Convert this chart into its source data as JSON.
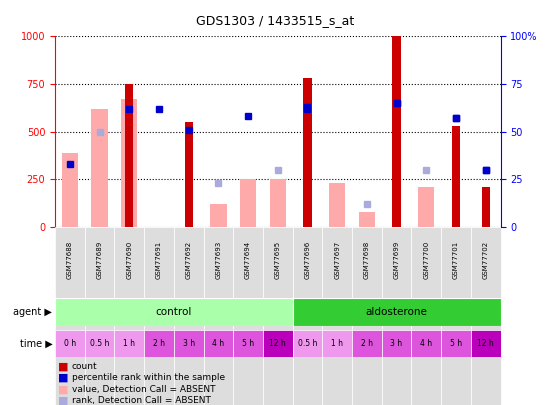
{
  "title": "GDS1303 / 1433515_s_at",
  "samples": [
    "GSM77688",
    "GSM77689",
    "GSM77690",
    "GSM77691",
    "GSM77692",
    "GSM77693",
    "GSM77694",
    "GSM77695",
    "GSM77696",
    "GSM77697",
    "GSM77698",
    "GSM77699",
    "GSM77700",
    "GSM77701",
    "GSM77702"
  ],
  "count_values": [
    null,
    null,
    750,
    null,
    550,
    null,
    null,
    null,
    780,
    null,
    null,
    1000,
    null,
    530,
    210
  ],
  "count_absent_values": [
    390,
    620,
    670,
    null,
    null,
    120,
    250,
    250,
    null,
    230,
    80,
    null,
    210,
    null,
    null
  ],
  "rank_present_values": [
    null,
    null,
    62,
    null,
    51,
    null,
    null,
    null,
    63,
    null,
    null,
    65,
    null,
    57,
    30
  ],
  "rank_absent_values": [
    null,
    50,
    null,
    null,
    null,
    23,
    null,
    30,
    null,
    null,
    12,
    null,
    30,
    null,
    null
  ],
  "blue_sq_present": [
    33,
    null,
    null,
    62,
    null,
    null,
    58,
    null,
    62,
    null,
    null,
    65,
    null,
    57,
    30
  ],
  "agent_groups": [
    {
      "label": "control",
      "start": 0,
      "end": 7,
      "color": "#AAFFAA"
    },
    {
      "label": "aldosterone",
      "start": 8,
      "end": 14,
      "color": "#33CC33"
    }
  ],
  "time_labels": [
    "0 h",
    "0.5 h",
    "1 h",
    "2 h",
    "3 h",
    "4 h",
    "5 h",
    "12 h",
    "0.5 h",
    "1 h",
    "2 h",
    "3 h",
    "4 h",
    "5 h",
    "12 h"
  ],
  "time_colors": [
    "#EE99EE",
    "#EE99EE",
    "#EE99EE",
    "#DD55DD",
    "#DD55DD",
    "#DD55DD",
    "#DD55DD",
    "#BB00BB",
    "#EE99EE",
    "#EE99EE",
    "#DD55DD",
    "#DD55DD",
    "#DD55DD",
    "#DD55DD",
    "#BB00BB"
  ],
  "ylim_left": [
    0,
    1000
  ],
  "ylim_right": [
    0,
    100
  ],
  "color_count": "#CC0000",
  "color_count_absent": "#FFAAAA",
  "color_rank": "#0000CC",
  "color_rank_absent": "#AAAADD",
  "bg_color": "#FFFFFF",
  "sample_bg": "#DDDDDD",
  "figsize": [
    5.5,
    4.05
  ],
  "dpi": 100
}
